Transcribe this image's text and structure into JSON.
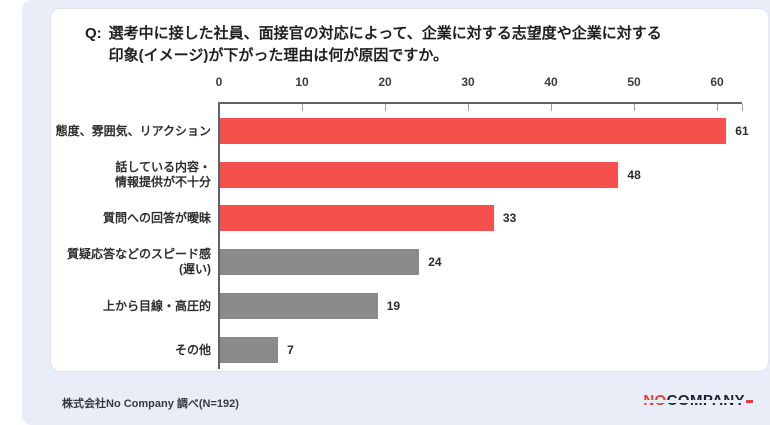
{
  "page": {
    "background_color": "#ffffff",
    "panel_color": "#e9edf7",
    "card_color": "#ffffff"
  },
  "title": {
    "prefix": "Q:",
    "text": "選考中に接した社員、面接官の対応によって、企業に対する志望度や企業に対する\n印象(イメージ)が下がった理由は何が原因ですか。"
  },
  "chart_data": {
    "type": "bar",
    "orientation": "horizontal",
    "title": "Q:選考中に接した社員、面接官の対応によって、企業に対する志望度や企業に対する印象(イメージ)が下がった理由は何が原因ですか。",
    "categories": [
      "態度、雰囲気、リアクション",
      "話している内容・\n情報提供が不十分",
      "質問への回答が曖昧",
      "質疑応答などのスピード感\n(遅い)",
      "上から目線・高圧的",
      "その他"
    ],
    "values": [
      61,
      48,
      33,
      24,
      19,
      7
    ],
    "value_labels_shown": true,
    "bar_colors": [
      "#f6504d",
      "#f6504d",
      "#f6504d",
      "#8a8a8a",
      "#8a8a8a",
      "#8a8a8a"
    ],
    "accent_color": "#f6504d",
    "neutral_color": "#8a8a8a",
    "x_ticks": [
      0,
      10,
      20,
      30,
      40,
      50,
      60
    ],
    "xlim": [
      0,
      63
    ],
    "xlabel": "",
    "ylabel": "",
    "grid": false,
    "legend": false
  },
  "footer": {
    "source": "株式会社No Company 調べ(N=192)"
  },
  "logo": {
    "no": "NO",
    "company": "COMPANY",
    "no_color": "#e8383d",
    "company_color": "#1c2030"
  }
}
